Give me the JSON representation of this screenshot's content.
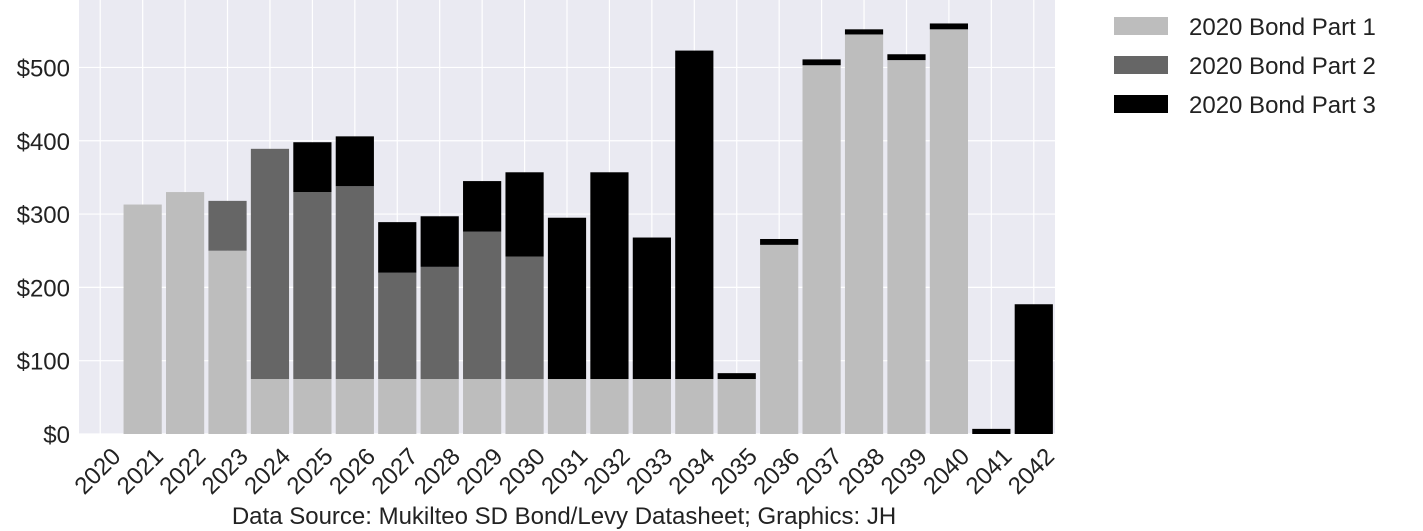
{
  "chart_data": {
    "type": "bar",
    "stacked": true,
    "categories": [
      "2020",
      "2021",
      "2022",
      "2023",
      "2024",
      "2025",
      "2026",
      "2027",
      "2028",
      "2029",
      "2030",
      "2031",
      "2032",
      "2033",
      "2034",
      "2035",
      "2036",
      "2037",
      "2038",
      "2039",
      "2040",
      "2041",
      "2042"
    ],
    "series": [
      {
        "name": "2020 Bond Part 1",
        "color": "#bdbdbd",
        "values": [
          0,
          313,
          330,
          250,
          75,
          75,
          75,
          75,
          75,
          75,
          75,
          75,
          75,
          75,
          75,
          75,
          258,
          503,
          545,
          510,
          552,
          0,
          0
        ]
      },
      {
        "name": "2020 Bond Part 2",
        "color": "#666666",
        "values": [
          0,
          0,
          0,
          68,
          314,
          255,
          263,
          145,
          153,
          201,
          167,
          0,
          0,
          0,
          0,
          0,
          0,
          0,
          0,
          0,
          0,
          0,
          0
        ]
      },
      {
        "name": "2020 Bond Part 3",
        "color": "#000000",
        "values": [
          0,
          0,
          0,
          0,
          0,
          68,
          68,
          69,
          69,
          69,
          115,
          220,
          282,
          193,
          448,
          8,
          8,
          8,
          7,
          8,
          8,
          7,
          177
        ]
      }
    ],
    "y_ticks": [
      "$0",
      "$100",
      "$200",
      "$300",
      "$400",
      "$500"
    ],
    "y_tick_values": [
      0,
      100,
      200,
      300,
      400,
      500
    ],
    "ylim": [
      0,
      592
    ],
    "xlabel": "Data Source: Mukilteo SD Bond/Levy Datasheet; Graphics: JH",
    "grid": true,
    "legend": "outside-top-right"
  },
  "colors": {
    "plot_background": "#eaeaf2",
    "grid": "#ffffff"
  }
}
